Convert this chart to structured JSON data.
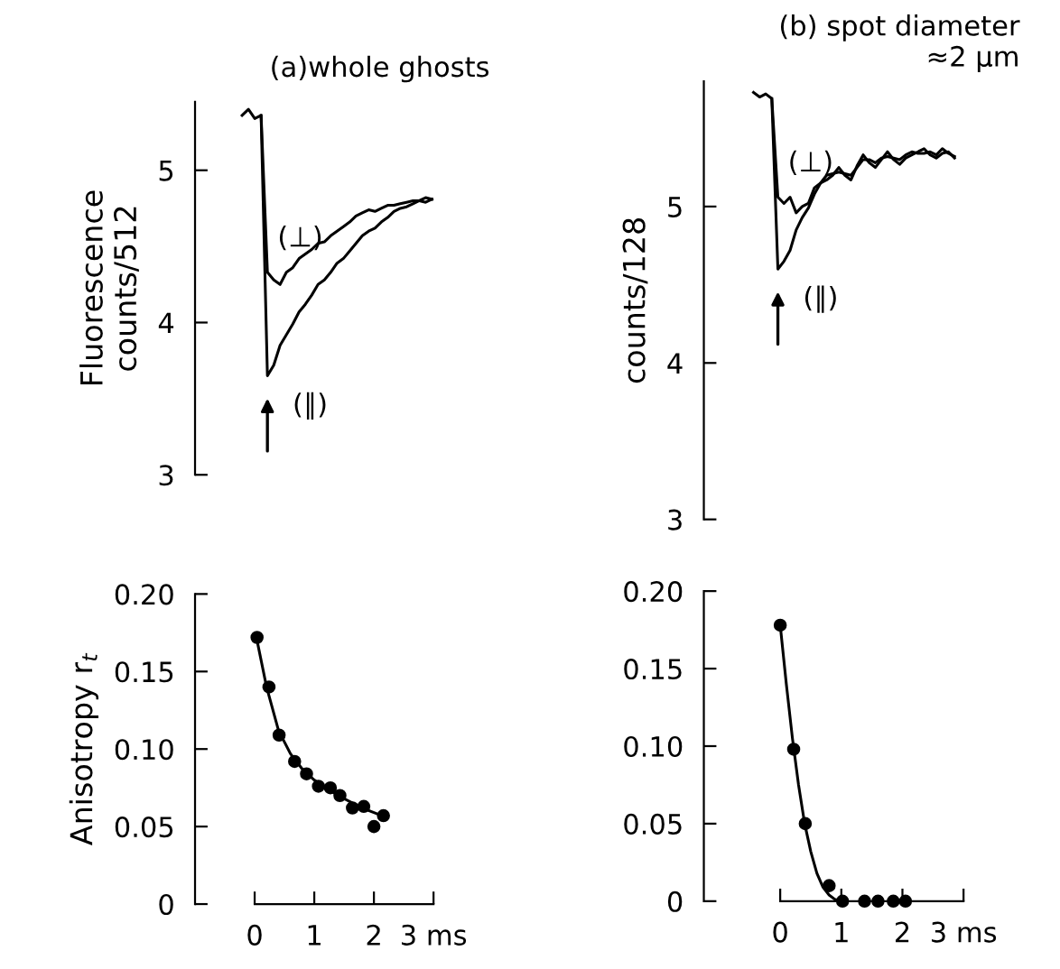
{
  "chart_data": [
    {
      "type": "line",
      "title": "(a)whole ghosts",
      "ylabel": "Fluorescence\ncounts/512",
      "ylim": [
        3,
        5.45
      ],
      "yticks": [
        3,
        4,
        5
      ],
      "tick_labels": "y",
      "line_style": "solid",
      "categories": [
        null,
        null,
        null,
        null,
        null,
        null,
        null,
        null,
        null,
        null,
        null,
        null,
        null,
        null,
        null,
        null,
        null,
        null,
        null,
        null,
        null,
        null,
        null,
        null,
        null,
        null,
        null,
        null,
        null,
        null,
        null
      ],
      "series": [
        {
          "name": "(⊥)",
          "color": "#000000",
          "values": [
            5.36,
            5.4,
            5.34,
            5.36,
            4.33,
            4.28,
            4.25,
            4.33,
            4.36,
            4.42,
            4.45,
            4.48,
            4.52,
            4.53,
            4.57,
            4.6,
            4.63,
            4.66,
            4.7,
            4.72,
            4.74,
            4.73,
            4.75,
            4.77,
            4.77,
            4.78,
            4.79,
            4.8,
            4.8,
            4.79,
            4.81
          ]
        },
        {
          "name": "(∥)",
          "color": "#000000",
          "values": [
            null,
            null,
            null,
            5.36,
            3.65,
            3.72,
            3.85,
            3.92,
            3.99,
            4.07,
            4.12,
            4.18,
            4.25,
            4.28,
            4.33,
            4.39,
            4.42,
            4.47,
            4.52,
            4.57,
            4.6,
            4.62,
            4.66,
            4.69,
            4.73,
            4.75,
            4.76,
            4.78,
            4.8,
            4.82,
            4.81
          ]
        }
      ]
    },
    {
      "type": "line",
      "title": "(b) spot diameter\n≈2 µm",
      "ylabel": "counts/128",
      "ylim": [
        3,
        5.8
      ],
      "yticks": [
        3,
        4,
        5
      ],
      "tick_labels": "y",
      "line_style": "solid",
      "categories": [
        null,
        null,
        null,
        null,
        null,
        null,
        null,
        null,
        null,
        null,
        null,
        null,
        null,
        null,
        null,
        null,
        null,
        null,
        null,
        null,
        null,
        null,
        null,
        null,
        null,
        null,
        null,
        null,
        null,
        null,
        null,
        null,
        null,
        null
      ],
      "series": [
        {
          "name": "(⊥)",
          "color": "#000000",
          "values": [
            5.73,
            5.7,
            5.72,
            5.69,
            5.06,
            5.02,
            5.06,
            4.96,
            5.0,
            5.02,
            5.12,
            5.15,
            5.17,
            5.2,
            5.25,
            5.2,
            5.17,
            5.26,
            5.33,
            5.28,
            5.25,
            5.3,
            5.35,
            5.3,
            5.27,
            5.31,
            5.33,
            5.35,
            5.37,
            5.33,
            5.31,
            5.34,
            5.35,
            5.31
          ]
        },
        {
          "name": "(∥)",
          "color": "#000000",
          "values": [
            null,
            null,
            null,
            5.69,
            4.6,
            4.65,
            4.72,
            4.85,
            4.93,
            4.99,
            5.08,
            5.15,
            5.2,
            5.21,
            5.22,
            5.21,
            5.2,
            5.25,
            5.3,
            5.3,
            5.28,
            5.31,
            5.32,
            5.31,
            5.3,
            5.33,
            5.35,
            5.34,
            5.34,
            5.35,
            5.33,
            5.37,
            5.34,
            5.32
          ]
        }
      ]
    },
    {
      "type": "scatter",
      "ylabel": "Anisotropy r$_{t}$",
      "xlim": [
        -1,
        3
      ],
      "ylim": [
        0,
        0.2
      ],
      "xticks": [
        0,
        1,
        2,
        {
          "value": 3,
          "label": "3 ms"
        }
      ],
      "yticks": [
        {
          "value": 0,
          "label": "0"
        },
        {
          "value": 0.05,
          "label": "0.05"
        },
        {
          "value": 0.1,
          "label": "0.10"
        },
        {
          "value": 0.15,
          "label": "0.15"
        },
        {
          "value": 0.2,
          "label": "0.20"
        }
      ],
      "series": [
        {
          "type": "scatter",
          "marker": "circle",
          "color": "#000000",
          "x": [
            0.04,
            0.24,
            0.41,
            0.67,
            0.87,
            1.07,
            1.27,
            1.43,
            1.64,
            1.83,
            2.0,
            2.16
          ],
          "values": [
            0.172,
            0.14,
            0.109,
            0.092,
            0.084,
            0.076,
            0.075,
            0.07,
            0.062,
            0.063,
            0.05,
            0.057
          ]
        },
        {
          "type": "line",
          "marker": "none",
          "color": "#000000",
          "x": [
            0.04,
            0.2,
            0.4,
            0.6,
            0.8,
            1.0,
            1.2,
            1.4,
            1.6,
            1.8,
            2.0,
            2.2
          ],
          "values": [
            0.17,
            0.14,
            0.112,
            0.097,
            0.087,
            0.08,
            0.075,
            0.07,
            0.066,
            0.062,
            0.059,
            0.056
          ]
        }
      ]
    },
    {
      "type": "scatter",
      "xlim": [
        -1.25,
        3
      ],
      "ylim": [
        0,
        0.2
      ],
      "xticks": [
        0,
        1,
        2,
        {
          "value": 3,
          "label": "3 ms"
        }
      ],
      "yticks": [
        {
          "value": 0,
          "label": "0"
        },
        {
          "value": 0.05,
          "label": "0.05"
        },
        {
          "value": 0.1,
          "label": "0.10"
        },
        {
          "value": 0.15,
          "label": "0.15"
        },
        {
          "value": 0.2,
          "label": "0.20"
        }
      ],
      "series": [
        {
          "type": "scatter",
          "marker": "circle",
          "color": "#000000",
          "x": [
            0.0,
            0.22,
            0.41,
            0.8,
            1.02,
            1.38,
            1.6,
            1.85,
            2.05
          ],
          "values": [
            0.178,
            0.098,
            0.05,
            0.01,
            0,
            0,
            0,
            0,
            0
          ]
        },
        {
          "type": "line",
          "marker": "none",
          "color": "#000000",
          "x": [
            0.0,
            0.1,
            0.2,
            0.3,
            0.4,
            0.5,
            0.6,
            0.7,
            0.8,
            0.9,
            1.0
          ],
          "values": [
            0.178,
            0.14,
            0.105,
            0.075,
            0.05,
            0.032,
            0.018,
            0.009,
            0.004,
            0.001,
            0
          ]
        }
      ]
    }
  ]
}
